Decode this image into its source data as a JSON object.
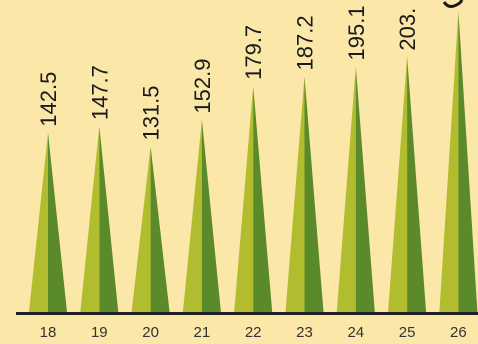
{
  "chart_data": {
    "type": "bar",
    "categories": [
      "18",
      "19",
      "20",
      "21",
      "22",
      "23",
      "24",
      "25",
      "26"
    ],
    "values": [
      142.5,
      147.7,
      131.5,
      152.9,
      179.7,
      187.2,
      195.1,
      203.0,
      239.0
    ],
    "value_labels": [
      "142.5",
      "147.7",
      "131.5",
      "152.9",
      "179.7",
      "187.2",
      "195.1",
      "203.",
      ""
    ],
    "ylim": [
      0,
      240
    ],
    "grid": false,
    "colors": {
      "background": "#fbe7a7",
      "spike_light": "#b1bc2e",
      "spike_dark": "#5b8a2a",
      "axis": "#222222",
      "label_text": "#1a1a1a",
      "tick_text": "#333333"
    }
  }
}
